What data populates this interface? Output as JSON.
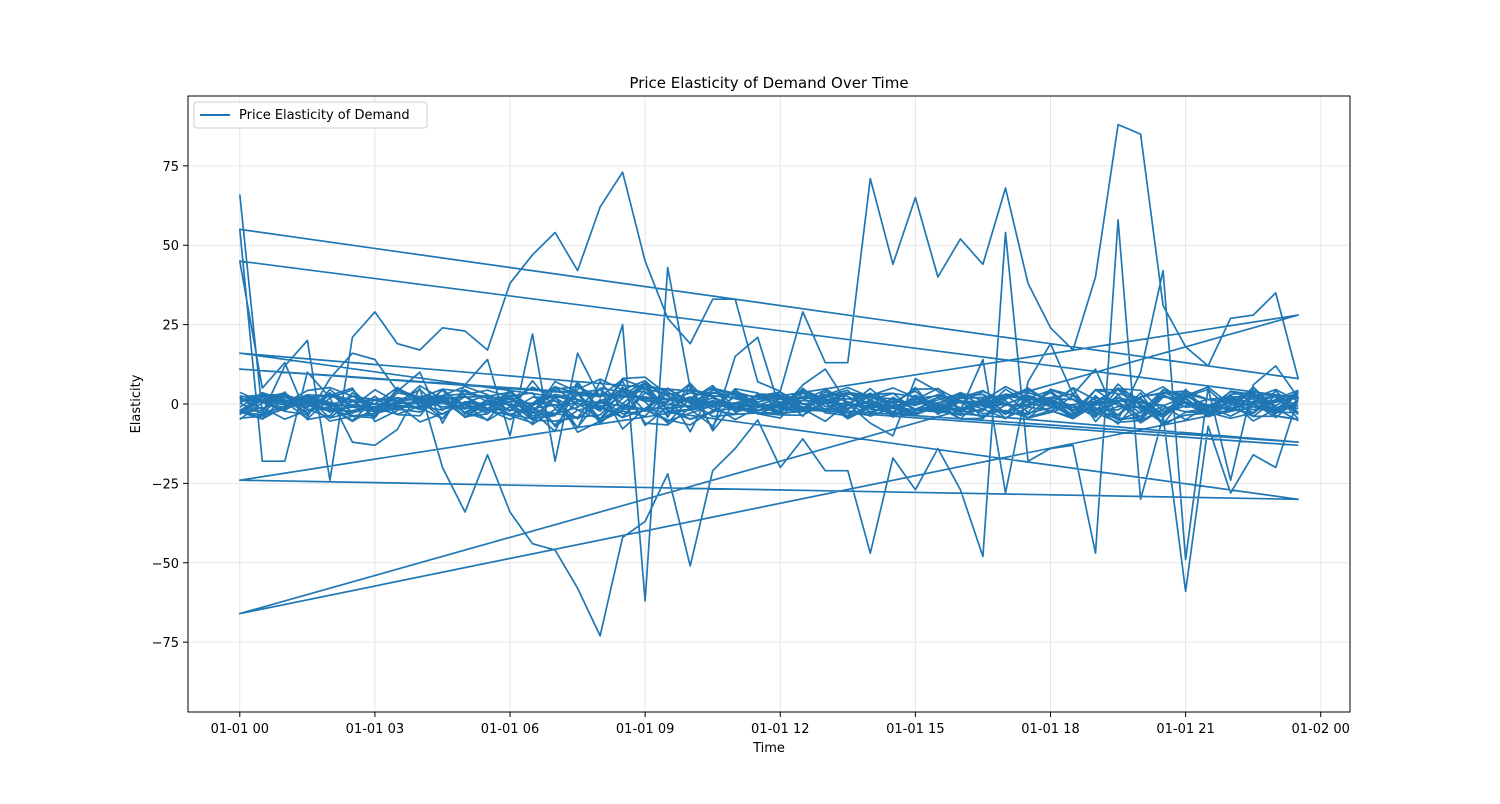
{
  "chart_data": {
    "type": "line",
    "title": "Price Elasticity of Demand Over Time",
    "xlabel": "Time",
    "ylabel": "Elasticity",
    "x_ticks": [
      "01-01 00",
      "01-01 03",
      "01-01 06",
      "01-01 09",
      "01-01 12",
      "01-01 15",
      "01-01 18",
      "01-01 21",
      "01-02 00"
    ],
    "y_ticks": [
      "75",
      "50",
      "25",
      "0",
      "−25",
      "−50",
      "−75"
    ],
    "x_range": [
      "2024-01-01 00:00",
      "2024-01-02 00:00"
    ],
    "xlim_hours": [
      -1.15,
      24.65
    ],
    "ylim": [
      -97,
      97
    ],
    "grid": true,
    "legend": {
      "position": "top-left",
      "entries": [
        "Price Elasticity of Demand"
      ]
    },
    "series": [
      {
        "name": "Price Elasticity of Demand",
        "color": "#1f77b4",
        "x_hours": [
          0,
          0.5,
          1,
          1.5,
          2,
          2.5,
          3,
          3.5,
          4,
          4.5,
          5,
          5.5,
          6,
          6.5,
          7,
          7.5,
          8,
          8.5,
          9,
          9.5,
          10,
          10.5,
          11,
          11.5,
          12,
          12.5,
          13,
          13.5,
          14,
          14.5,
          15,
          15.5,
          16,
          16.5,
          17,
          17.5,
          18,
          18.5,
          19,
          19.5,
          20,
          20.5,
          21,
          21.5,
          22,
          22.5,
          23,
          23.5,
          0,
          0.5,
          1,
          1.5,
          2,
          2.5,
          3,
          3.5,
          4,
          4.5,
          5,
          5.5,
          6,
          6.5,
          7,
          7.5,
          8,
          8.5,
          9,
          9.5,
          10,
          10.5,
          11,
          11.5,
          12,
          12.5,
          13,
          13.5,
          14,
          14.5,
          15,
          15.5,
          16,
          16.5,
          17,
          17.5,
          18,
          18.5,
          19,
          19.5,
          20,
          20.5,
          21,
          21.5,
          22,
          22.5,
          23,
          23.5,
          0,
          0.5,
          1,
          1.5,
          2,
          2.5,
          3,
          3.5,
          4,
          4.5,
          5,
          5.5,
          6,
          6.5,
          7,
          7.5,
          8,
          8.5,
          9,
          9.5,
          10,
          10.5,
          11,
          11.5,
          12,
          12.5,
          13,
          13.5,
          14,
          14.5,
          15,
          15.5,
          16,
          16.5,
          17,
          17.5,
          18,
          18.5,
          19,
          19.5,
          20,
          20.5,
          21,
          21.5,
          22,
          22.5,
          23,
          23.5,
          0,
          23.5,
          0,
          23.5,
          0,
          23.5,
          0,
          23.5
        ],
        "values": [
          66,
          -3,
          12,
          20,
          -24,
          21,
          29,
          19,
          17,
          24,
          23,
          17,
          38,
          47,
          54,
          42,
          62,
          73,
          45,
          27,
          19,
          33,
          33,
          7,
          4,
          29,
          13,
          13,
          71,
          44,
          65,
          40,
          52,
          44,
          68,
          38,
          24,
          17,
          40,
          88,
          85,
          31,
          18,
          12,
          27,
          28,
          35,
          8,
          55,
          -18,
          -18,
          10,
          2,
          -12,
          -13,
          -8,
          5,
          -20,
          -34,
          -16,
          -34,
          -44,
          -46,
          -58,
          -73,
          -42,
          -37,
          -22,
          -51,
          -21,
          -14,
          -5,
          -20,
          -11,
          -21,
          -21,
          -47,
          -17,
          -27,
          -14,
          -27,
          -48,
          54,
          -18,
          -14,
          -13,
          -47,
          58,
          -30,
          -4,
          -59,
          -7,
          -28,
          -16,
          -20,
          2,
          45,
          5,
          13,
          -4,
          8,
          16,
          14,
          4,
          10,
          -6,
          6,
          14,
          -10,
          22,
          -18,
          16,
          2,
          25,
          -62,
          43,
          5,
          -8,
          15,
          21,
          -2,
          6,
          11,
          0,
          -6,
          -10,
          8,
          4,
          -2,
          14,
          -28,
          7,
          19,
          3,
          11,
          -5,
          10,
          42,
          -49,
          5,
          -24,
          6,
          12,
          2,
          -66,
          28,
          -24,
          -30,
          16,
          -12,
          11,
          -13
        ]
      }
    ]
  }
}
